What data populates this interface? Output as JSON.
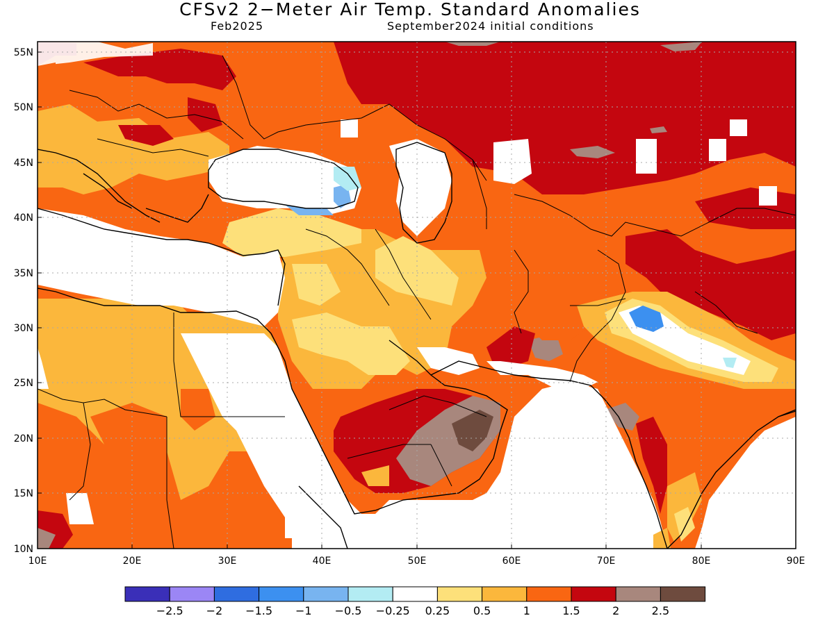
{
  "title": "CFSv2 2−Meter Air Temp. Standard Anomalies",
  "valid_month": "Feb2025",
  "initial_conditions": "September2024 initial conditions",
  "lat_labels": [
    "55N",
    "50N",
    "45N",
    "40N",
    "35N",
    "30N",
    "25N",
    "20N",
    "15N",
    "10N"
  ],
  "lon_labels": [
    "10E",
    "20E",
    "30E",
    "40E",
    "50E",
    "60E",
    "70E",
    "80E",
    "90E"
  ],
  "colorbar": {
    "colors": [
      "#3a2fb8",
      "#9b86f5",
      "#2f6de0",
      "#3c90f0",
      "#78b4f0",
      "#b3ecf3",
      "#ffffff",
      "#fde07a",
      "#fbb73c",
      "#f96612",
      "#c4060f",
      "#a8877d",
      "#6e4b3e"
    ],
    "labels": [
      "−2.5",
      "−2",
      "−1.5",
      "−1",
      "−0.5",
      "−0.25",
      "0.25",
      "0.5",
      "1",
      "1.5",
      "2",
      "2.5"
    ]
  }
}
